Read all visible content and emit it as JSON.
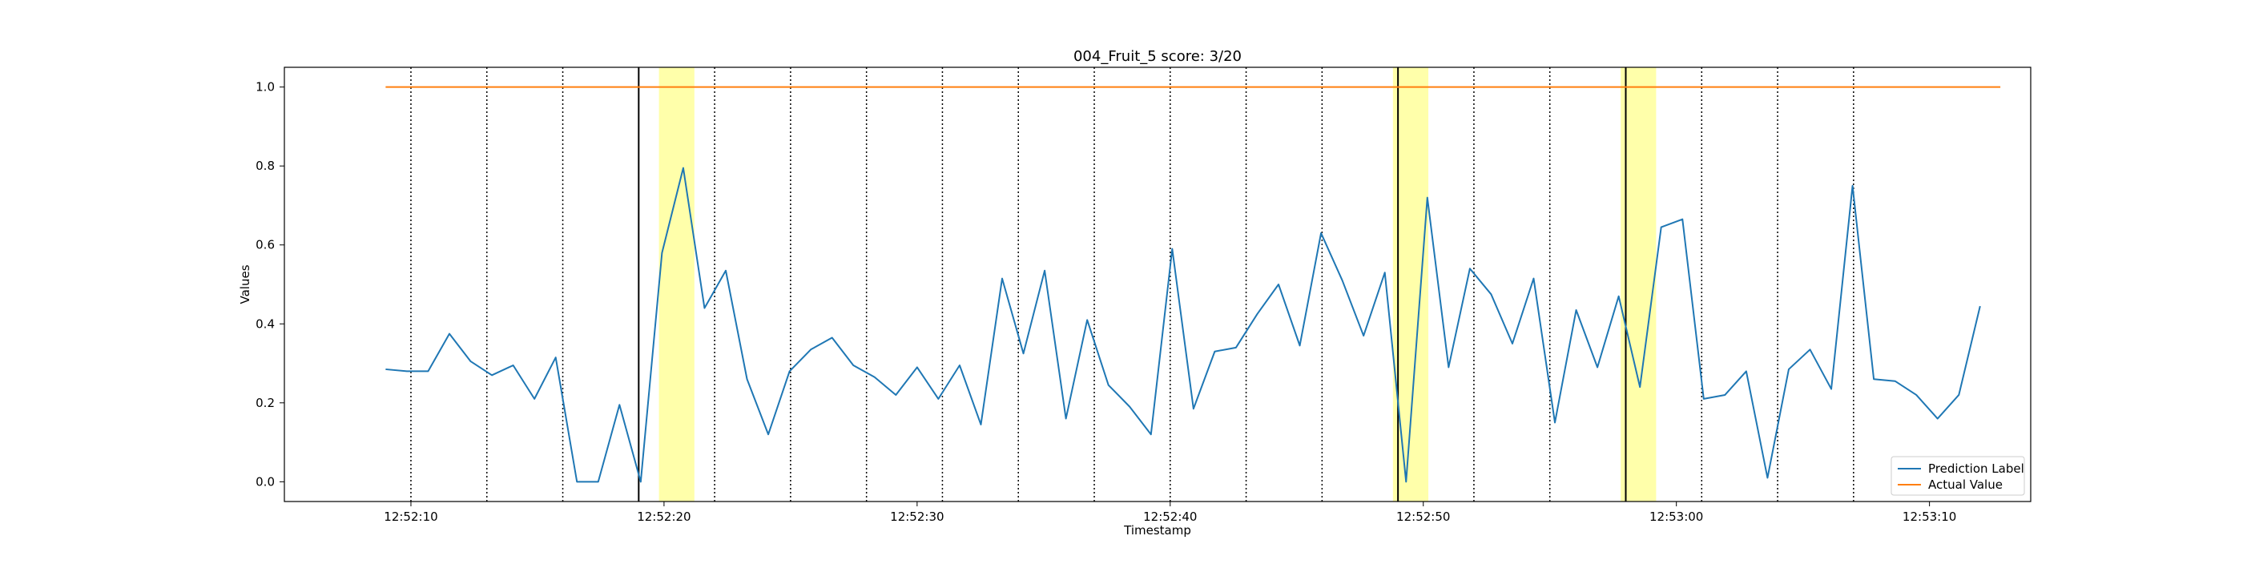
{
  "chart_data": {
    "type": "line",
    "title": "004_Fruit_5 score: 3/20",
    "xlabel": "Timestamp",
    "ylabel": "Values",
    "x_start": "12:52:09",
    "x_end": "12:53:12",
    "xlim": [
      "12:52:05",
      "12:53:14"
    ],
    "ylim": [
      -0.05,
      1.05
    ],
    "x_ticks": [
      "12:52:10",
      "12:52:20",
      "12:52:30",
      "12:52:40",
      "12:52:50",
      "12:53:00",
      "12:53:10"
    ],
    "y_ticks": [
      "0.0",
      "0.2",
      "0.4",
      "0.6",
      "0.8",
      "1.0"
    ],
    "grid": false,
    "legend_position": "lower-right",
    "series": [
      {
        "name": "Prediction Label",
        "color": "#1f77b4",
        "values": [
          0.285,
          0.28,
          0.28,
          0.375,
          0.305,
          0.27,
          0.295,
          0.21,
          0.315,
          0.0,
          0.0,
          0.195,
          0.0,
          0.58,
          0.795,
          0.44,
          0.535,
          0.26,
          0.12,
          0.28,
          0.335,
          0.365,
          0.295,
          0.265,
          0.22,
          0.29,
          0.21,
          0.295,
          0.145,
          0.515,
          0.325,
          0.535,
          0.16,
          0.41,
          0.245,
          0.19,
          0.12,
          0.59,
          0.185,
          0.33,
          0.34,
          0.425,
          0.5,
          0.345,
          0.63,
          0.51,
          0.37,
          0.53,
          0.0,
          0.72,
          0.29,
          0.54,
          0.475,
          0.35,
          0.515,
          0.15,
          0.435,
          0.29,
          0.47,
          0.24,
          0.645,
          0.665,
          0.21,
          0.22,
          0.28,
          0.01,
          0.285,
          0.335,
          0.235,
          0.75,
          0.26,
          0.255,
          0.22,
          0.16,
          0.22,
          0.445
        ]
      },
      {
        "name": "Actual Value",
        "color": "#ff7f0e",
        "values": [
          1.0,
          1.0
        ]
      }
    ],
    "dotted_vlines": [
      "12:52:10",
      "12:52:13",
      "12:52:16",
      "12:52:22",
      "12:52:25",
      "12:52:28",
      "12:52:31",
      "12:52:34",
      "12:52:37",
      "12:52:40",
      "12:52:43",
      "12:52:46",
      "12:52:52",
      "12:52:55",
      "12:53:01",
      "12:53:04",
      "12:53:07"
    ],
    "solid_vlines": [
      "12:52:19",
      "12:52:49",
      "12:52:58"
    ],
    "highlight_color": "#ffffaa",
    "highlight_spans": [
      [
        "12:52:19.8",
        "12:52:21.2"
      ],
      [
        "12:52:48.8",
        "12:52:50.2"
      ],
      [
        "12:52:57.8",
        "12:52:59.2"
      ]
    ]
  }
}
